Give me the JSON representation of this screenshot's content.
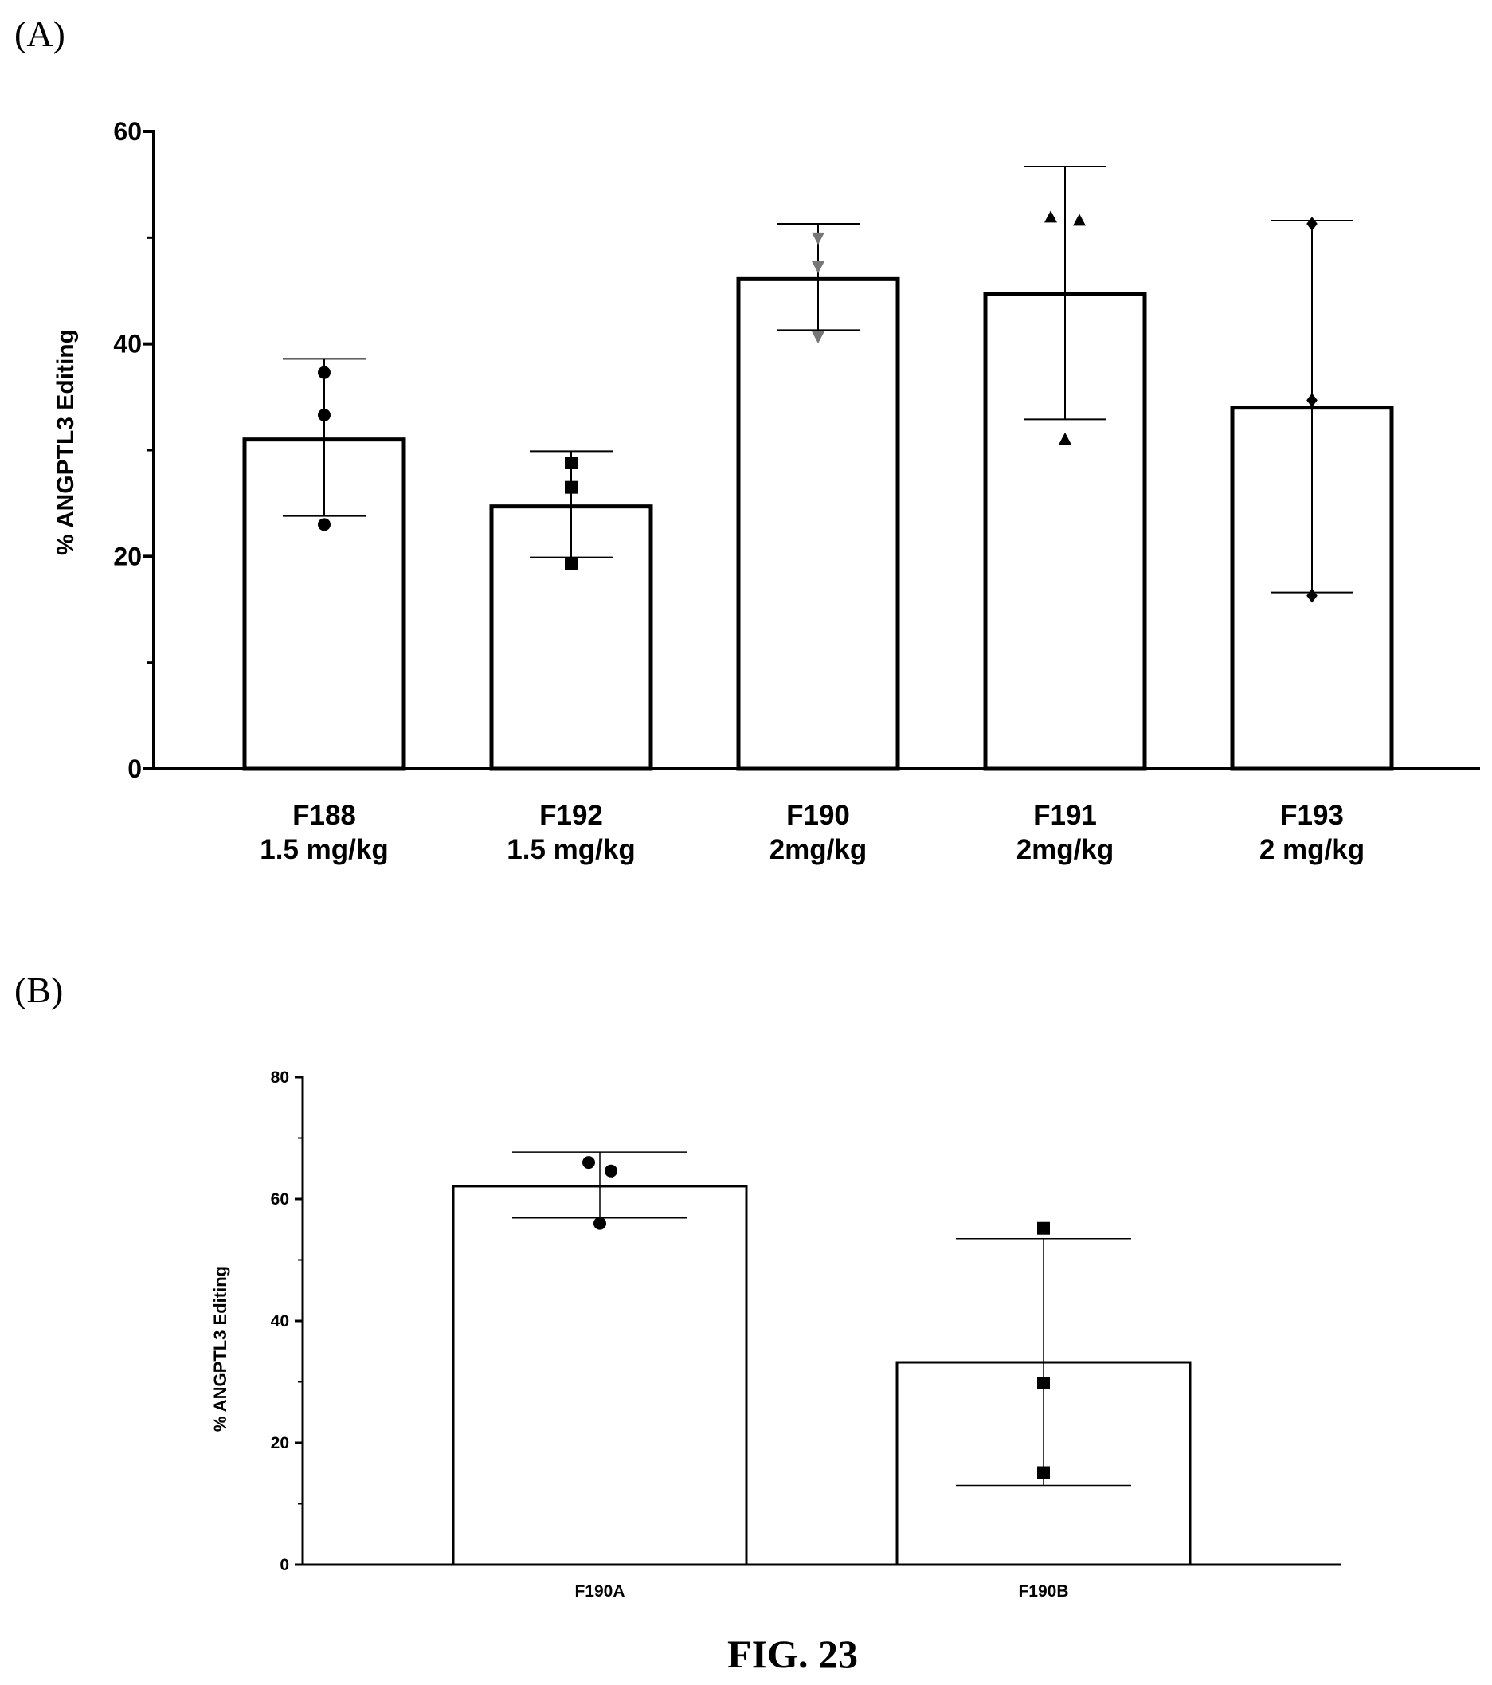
{
  "figure_caption": "FIG. 23",
  "chart_data": [
    {
      "type": "bar",
      "panel_label": "(A)",
      "title": "",
      "xlabel": "",
      "ylabel": "% ANGPTL3 Editing",
      "ylim": [
        0,
        60
      ],
      "yticks": [
        0,
        20,
        40,
        60
      ],
      "grid": false,
      "categories": [
        [
          "F188",
          "1.5 mg/kg"
        ],
        [
          "F192",
          "1.5 mg/kg"
        ],
        [
          "F190",
          "2mg/kg"
        ],
        [
          "F191",
          "2mg/kg"
        ],
        [
          "F193",
          "2 mg/kg"
        ]
      ],
      "values": [
        31.0,
        24.7,
        46.1,
        44.7,
        34.0
      ],
      "error": [
        [
          23.8,
          38.6
        ],
        [
          19.9,
          29.9
        ],
        [
          41.3,
          51.3
        ],
        [
          32.9,
          56.7
        ],
        [
          16.6,
          51.6
        ]
      ],
      "points": [
        [
          37.3,
          33.3,
          23.0
        ],
        [
          28.8,
          26.5,
          19.3
        ],
        [
          50.0,
          47.3,
          40.7
        ],
        [
          51.9,
          51.6,
          31.0
        ],
        [
          51.3,
          34.7,
          16.3
        ]
      ],
      "markers": [
        "circle",
        "square",
        "triangle-down",
        "triangle-up",
        "diamond"
      ],
      "colors": {
        "bar_fill": "#ffffff",
        "bar_stroke": "#000000",
        "marker": "#000000",
        "marker_triangle_down": "#777777"
      }
    },
    {
      "type": "bar",
      "panel_label": "(B)",
      "title": "",
      "xlabel": "",
      "ylabel": "% ANGPTL3 Editing",
      "ylim": [
        0,
        80
      ],
      "yticks": [
        0,
        20,
        40,
        60,
        80
      ],
      "grid": false,
      "categories": [
        [
          "F190A"
        ],
        [
          "F190B"
        ]
      ],
      "values": [
        62.1,
        33.2
      ],
      "error": [
        [
          56.9,
          67.7
        ],
        [
          13.0,
          53.5
        ]
      ],
      "points": [
        [
          66.0,
          64.6,
          56.0
        ],
        [
          55.2,
          29.8,
          15.1
        ]
      ],
      "markers": [
        "circle",
        "square"
      ],
      "colors": {
        "bar_fill": "#ffffff",
        "bar_stroke": "#000000",
        "marker": "#000000"
      }
    }
  ]
}
